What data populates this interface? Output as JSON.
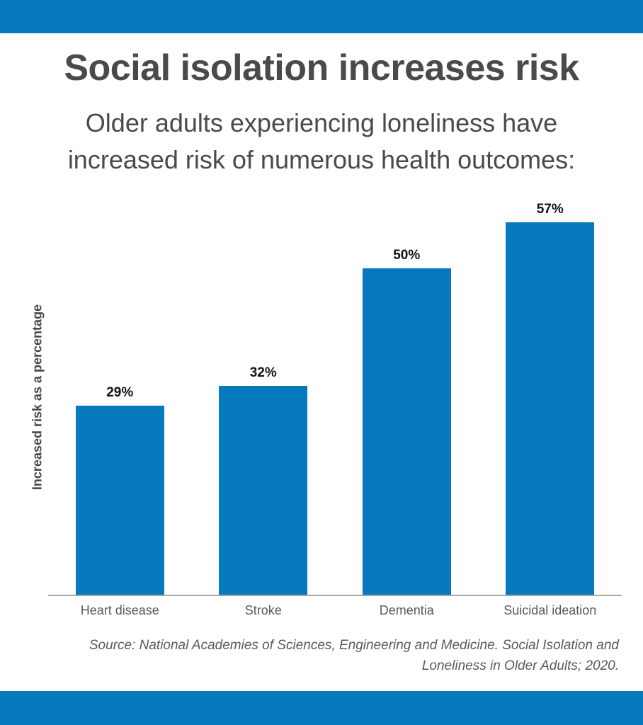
{
  "page": {
    "title": "Social isolation increases risk",
    "subtitle_line1": "Older adults experiencing loneliness have",
    "subtitle_line2": "increased risk of numerous health outcomes:",
    "source_line1": "Source: National Academies of Sciences, Engineering and Medicine. Social Isolation and",
    "source_line2": "Loneliness in Older Adults; 2020."
  },
  "colors": {
    "accent_blue": "#0779BF",
    "heading_gray": "#4A4A4A",
    "label_gray": "#595959",
    "axis_gray": "#A6A6A6",
    "value_black": "#111111"
  },
  "chart_data": {
    "type": "bar",
    "title": "Social isolation increases risk",
    "subtitle": "Older adults experiencing loneliness have increased risk of numerous health outcomes:",
    "categories": [
      "Heart disease",
      "Stroke",
      "Dementia",
      "Suicidal ideation"
    ],
    "values": [
      29,
      32,
      50,
      57
    ],
    "value_labels": [
      "29%",
      "32%",
      "50%",
      "57%"
    ],
    "xlabel": "",
    "ylabel": "Increased risk as a percentage",
    "ylim": [
      0,
      60
    ],
    "grid": false,
    "legend": false,
    "bar_color": "#0779BF",
    "source": "Source: National Academies of Sciences, Engineering and Medicine. Social Isolation and Loneliness in Older Adults; 2020."
  }
}
